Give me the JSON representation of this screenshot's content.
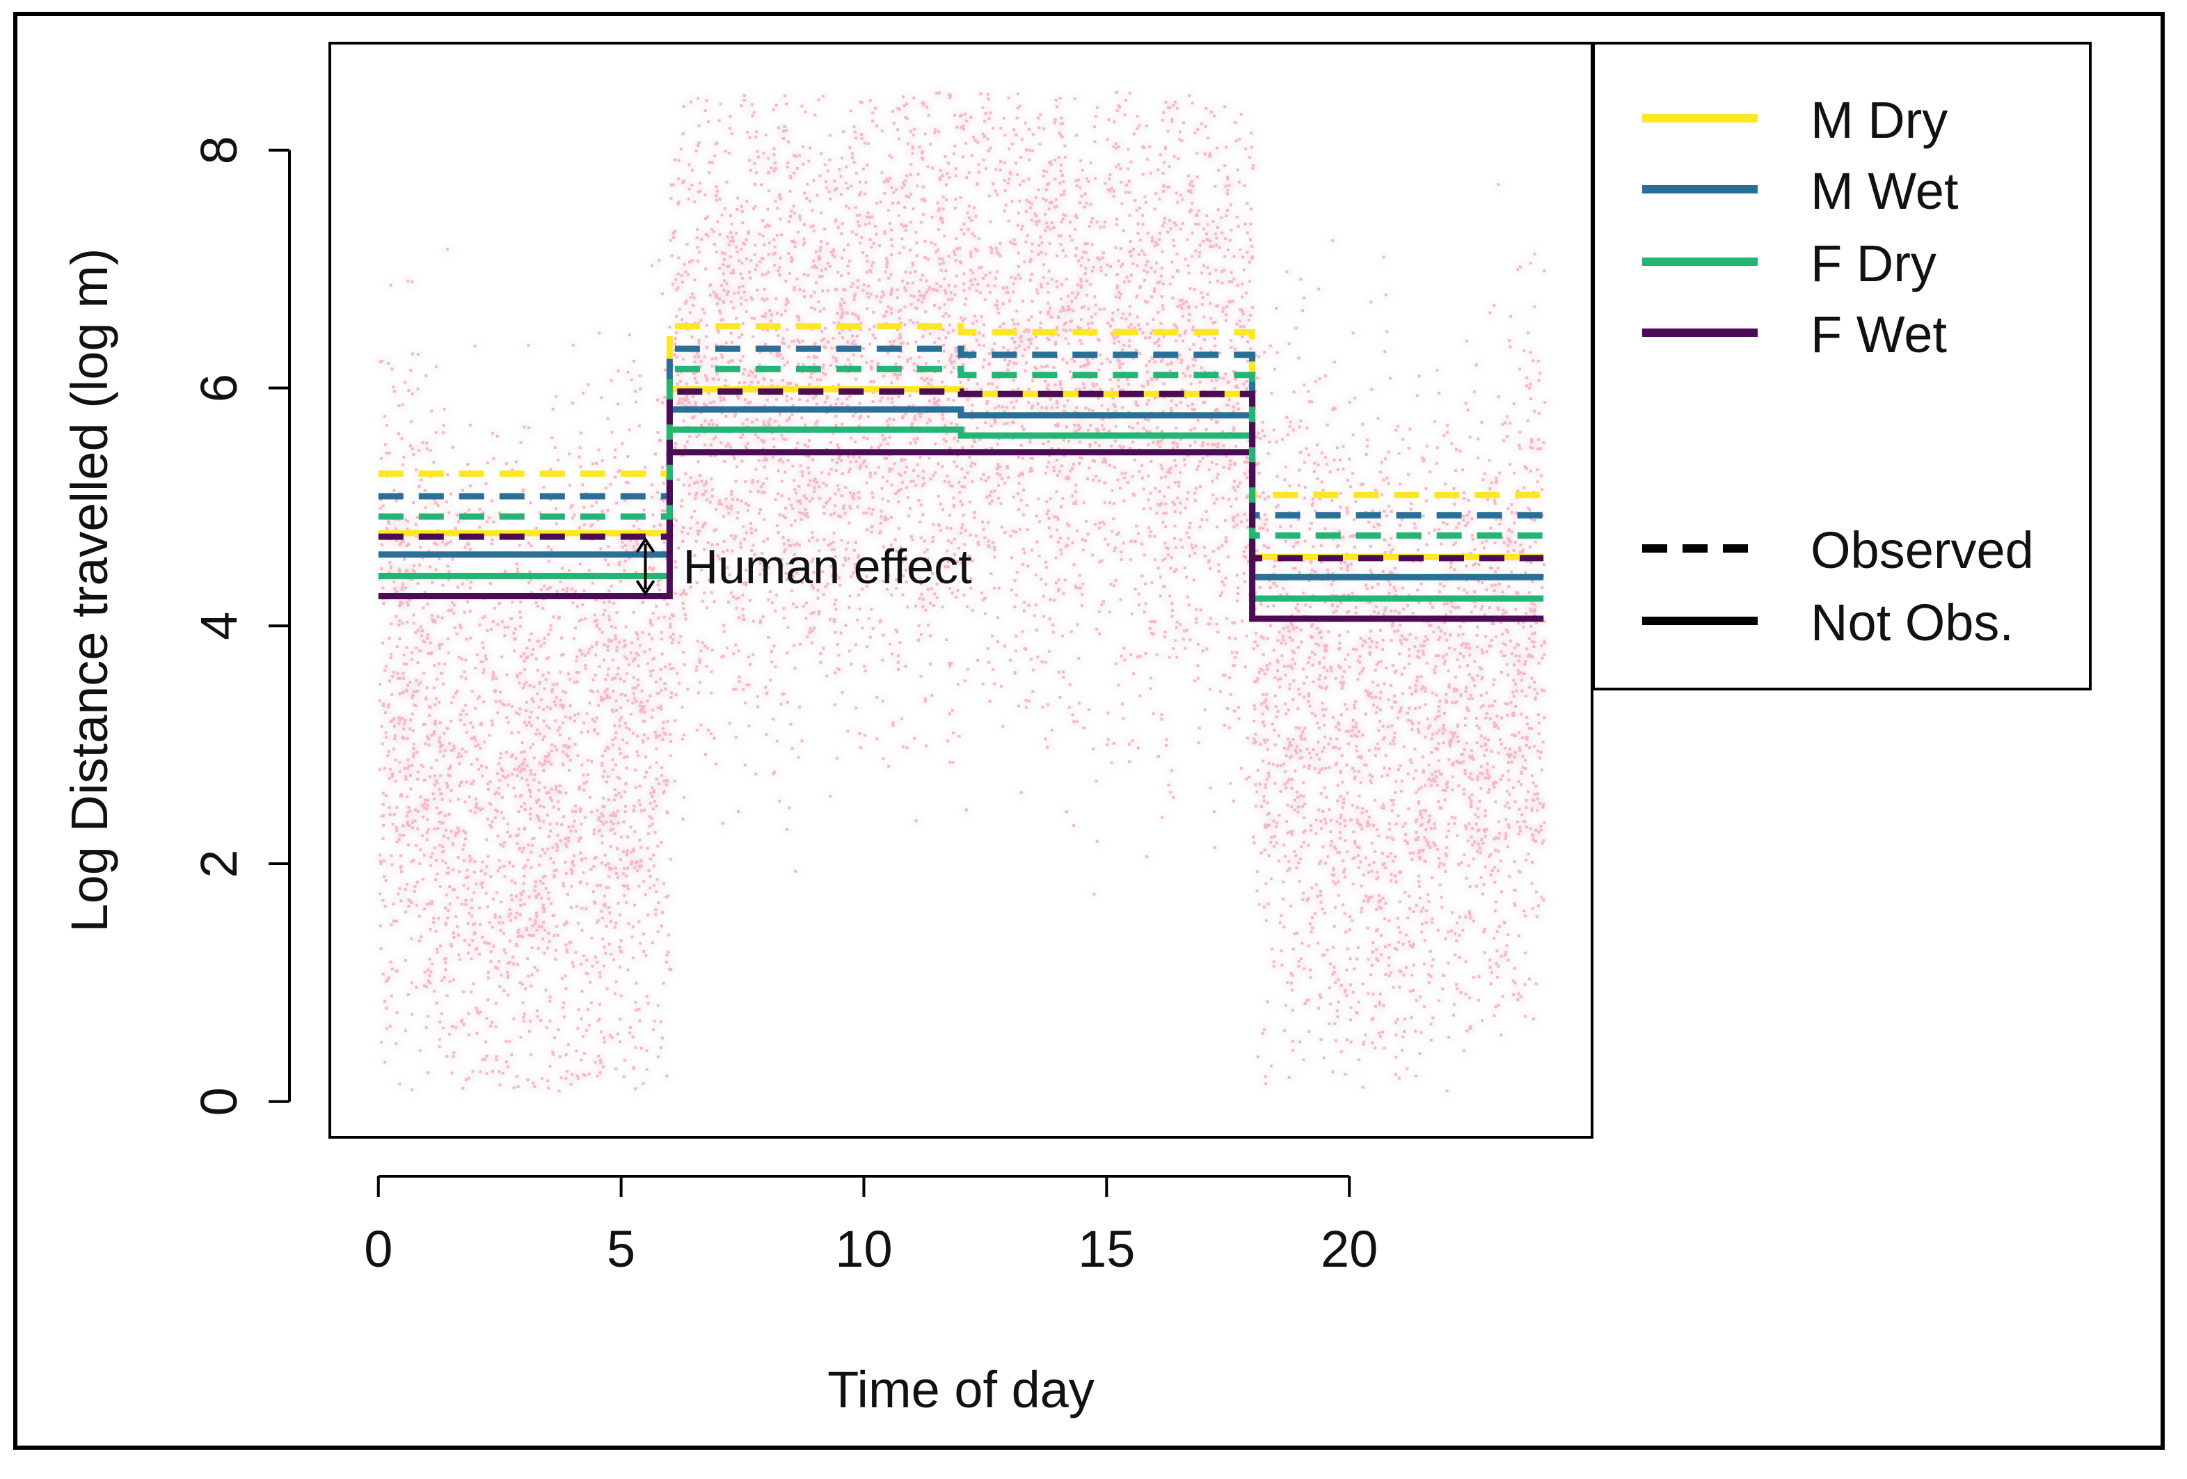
{
  "chart_data": {
    "type": "line",
    "subtype": "step",
    "title": "",
    "xlabel": "Time of day",
    "ylabel": "Log Distance travelled (log m)",
    "xlim": [
      -1,
      25
    ],
    "ylim": [
      -0.3,
      8.9
    ],
    "xticks": [
      0,
      5,
      10,
      15,
      20
    ],
    "yticks": [
      0,
      2,
      4,
      6,
      8
    ],
    "grid": false,
    "legend": {
      "position": "right",
      "entries": [
        {
          "label": "M Dry",
          "color": "#fde725",
          "style": "solid"
        },
        {
          "label": "M Wet",
          "color": "#2a6f97",
          "style": "solid"
        },
        {
          "label": "F Dry",
          "color": "#22b573",
          "style": "solid"
        },
        {
          "label": "F Wet",
          "color": "#4b0c55",
          "style": "solid"
        },
        {
          "label": "Observed",
          "color": "#000000",
          "style": "dashed"
        },
        {
          "label": "Not Obs.",
          "color": "#000000",
          "style": "solid"
        }
      ]
    },
    "annotation": {
      "text": "Human effect",
      "x": 5.5,
      "y_from": 4.75,
      "y_to": 4.25
    },
    "scatter_background": {
      "color": "#f7b6c6",
      "description_counts": "dense cloud of individual observations",
      "x_range": [
        0,
        24
      ],
      "y_range": [
        0.1,
        8.5
      ]
    },
    "segments": [
      {
        "start": 0,
        "end": 6
      },
      {
        "start": 6,
        "end": 12
      },
      {
        "start": 12,
        "end": 18
      },
      {
        "start": 18,
        "end": 24
      }
    ],
    "series": [
      {
        "name": "M Dry Observed",
        "group": "M Dry",
        "observed": true,
        "color": "#fde725",
        "values": [
          5.28,
          6.52,
          6.47,
          5.1
        ]
      },
      {
        "name": "M Wet Observed",
        "group": "M Wet",
        "observed": true,
        "color": "#2a6f97",
        "values": [
          5.09,
          6.33,
          6.28,
          4.93
        ]
      },
      {
        "name": "F Dry Observed",
        "group": "F Dry",
        "observed": true,
        "color": "#22b573",
        "values": [
          4.92,
          6.16,
          6.11,
          4.76
        ]
      },
      {
        "name": "F Wet Observed",
        "group": "F Wet",
        "observed": true,
        "color": "#4b0c55",
        "values": [
          4.75,
          5.97,
          5.95,
          4.57
        ]
      },
      {
        "name": "M Dry Not Obs.",
        "group": "M Dry",
        "observed": false,
        "color": "#fde725",
        "values": [
          4.78,
          5.99,
          5.95,
          4.58
        ]
      },
      {
        "name": "M Wet Not Obs.",
        "group": "M Wet",
        "observed": false,
        "color": "#2a6f97",
        "values": [
          4.6,
          5.82,
          5.77,
          4.41
        ]
      },
      {
        "name": "F Dry Not Obs.",
        "group": "F Dry",
        "observed": false,
        "color": "#22b573",
        "values": [
          4.42,
          5.65,
          5.6,
          4.23
        ]
      },
      {
        "name": "F Wet Not Obs.",
        "group": "F Wet",
        "observed": false,
        "color": "#4b0c55",
        "values": [
          4.25,
          5.46,
          5.46,
          4.06
        ]
      }
    ]
  }
}
